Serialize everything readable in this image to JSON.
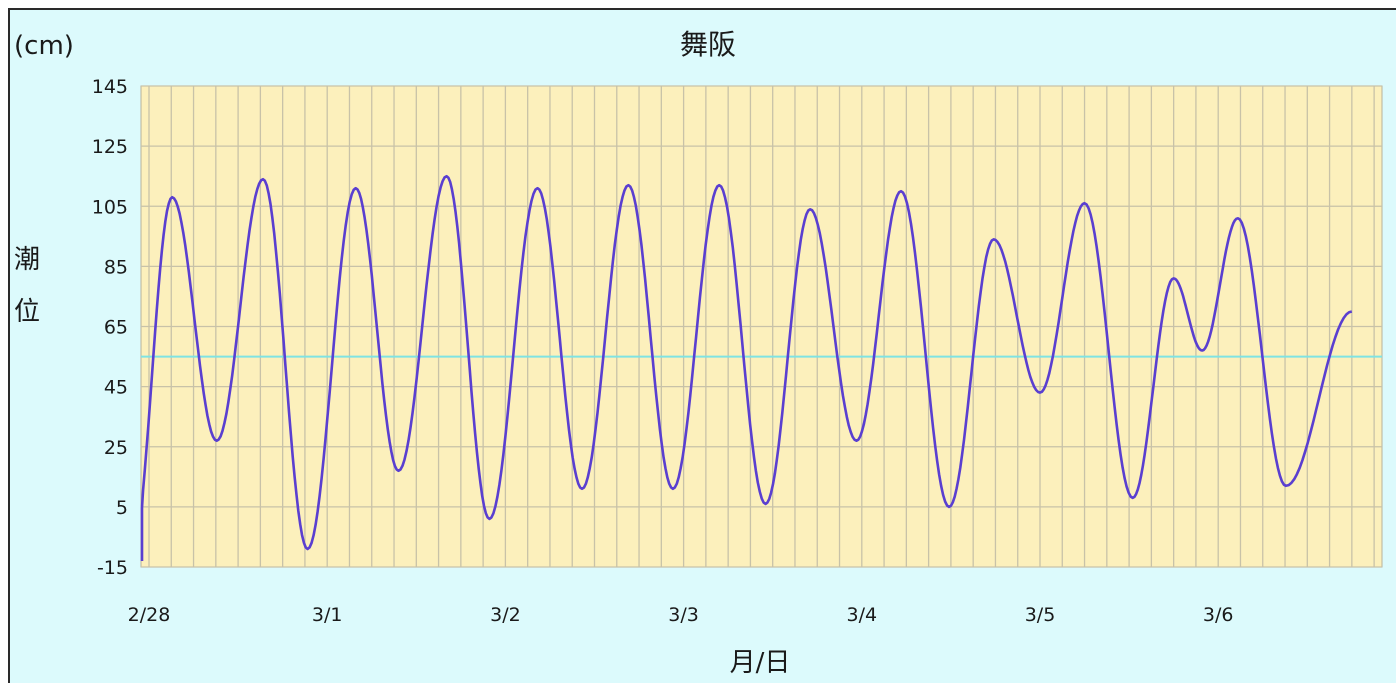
{
  "chart_data": {
    "type": "line",
    "title": "舞阪",
    "unit_label": "(cm)",
    "xlabel": "月/日",
    "ylabel": "潮位",
    "ylim": [
      -15,
      145
    ],
    "yticks": [
      -15,
      5,
      25,
      45,
      65,
      85,
      105,
      125,
      145
    ],
    "x_ticks": [
      {
        "day": 0,
        "label": "2/28"
      },
      {
        "day": 1,
        "label": "3/1"
      },
      {
        "day": 2,
        "label": "3/2"
      },
      {
        "day": 3,
        "label": "3/3"
      },
      {
        "day": 4,
        "label": "3/4"
      },
      {
        "day": 5,
        "label": "3/5"
      },
      {
        "day": 6,
        "label": "3/6"
      }
    ],
    "xlim_days": [
      -0.1,
      6.75
    ],
    "grid": true,
    "reference_line": {
      "value": 55,
      "color": "#7fe3e3"
    },
    "series": [
      {
        "color": "#5a3fd0",
        "extrema": [
          [
            -0.1,
            -13
          ],
          [
            0.13,
            108
          ],
          [
            0.38,
            27
          ],
          [
            0.64,
            114
          ],
          [
            0.89,
            -9
          ],
          [
            1.16,
            111
          ],
          [
            1.4,
            17
          ],
          [
            1.67,
            115
          ],
          [
            1.91,
            1
          ],
          [
            2.18,
            111
          ],
          [
            2.43,
            11
          ],
          [
            2.69,
            112
          ],
          [
            2.94,
            11
          ],
          [
            3.2,
            112
          ],
          [
            3.46,
            6
          ],
          [
            3.71,
            104
          ],
          [
            3.97,
            27
          ],
          [
            4.22,
            110
          ],
          [
            4.49,
            5
          ],
          [
            4.74,
            94
          ],
          [
            5.0,
            43
          ],
          [
            5.25,
            106
          ],
          [
            5.52,
            8
          ],
          [
            5.75,
            81
          ],
          [
            5.91,
            57
          ],
          [
            6.11,
            101
          ],
          [
            6.38,
            12
          ],
          [
            6.75,
            70
          ]
        ]
      }
    ],
    "colors": {
      "frame_bg": "#dcfafc",
      "plot_bg": "#fcf0bc",
      "grid": "#c8c2a8",
      "line": "#5a3fd0",
      "reference": "#7fe3e3"
    }
  }
}
